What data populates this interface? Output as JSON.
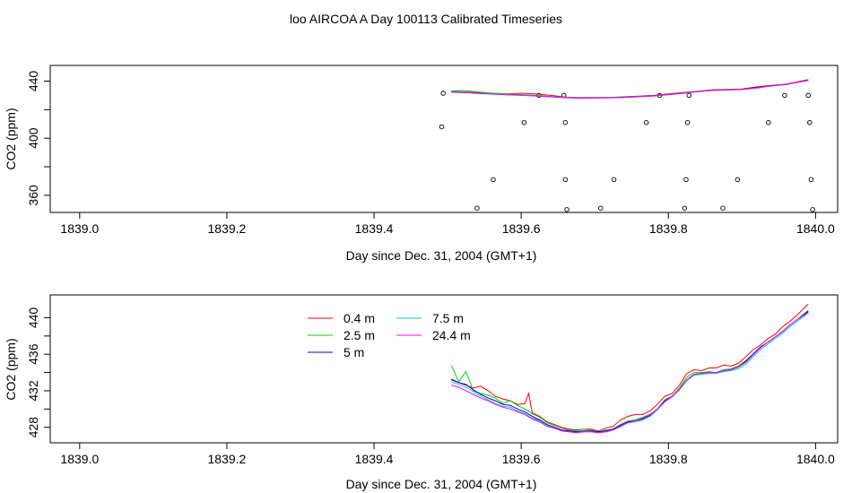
{
  "title": "loo AIRCOA A  Day 100113  Calibrated Timeseries",
  "colors": {
    "axis": "#000000",
    "background": "#ffffff"
  },
  "chart_data": [
    {
      "type": "line",
      "xlabel": "Day since Dec. 31, 2004 (GMT+1)",
      "ylabel": "CO2 (ppm)",
      "xlim": [
        1838.96,
        1840.03
      ],
      "ylim": [
        348,
        451
      ],
      "xticks": [
        "1839.0",
        "1839.2",
        "1839.4",
        "1839.6",
        "1839.8",
        "1840.0"
      ],
      "xtick_values": [
        1839.0,
        1839.2,
        1839.4,
        1839.6,
        1839.8,
        1840.0
      ],
      "yticks": [
        "360",
        "400",
        "440"
      ],
      "ytick_values": [
        360,
        380,
        400,
        420,
        440
      ],
      "scatter_points": [
        {
          "x": 1839.494,
          "y": 431.5
        },
        {
          "x": 1839.492,
          "y": 408
        },
        {
          "x": 1839.54,
          "y": 351
        },
        {
          "x": 1839.562,
          "y": 371
        },
        {
          "x": 1839.604,
          "y": 411
        },
        {
          "x": 1839.624,
          "y": 430
        },
        {
          "x": 1839.658,
          "y": 430
        },
        {
          "x": 1839.66,
          "y": 411
        },
        {
          "x": 1839.66,
          "y": 371
        },
        {
          "x": 1839.662,
          "y": 350
        },
        {
          "x": 1839.708,
          "y": 351
        },
        {
          "x": 1839.726,
          "y": 371
        },
        {
          "x": 1839.77,
          "y": 411
        },
        {
          "x": 1839.788,
          "y": 430
        },
        {
          "x": 1839.822,
          "y": 351
        },
        {
          "x": 1839.824,
          "y": 371
        },
        {
          "x": 1839.826,
          "y": 411
        },
        {
          "x": 1839.828,
          "y": 430
        },
        {
          "x": 1839.874,
          "y": 351
        },
        {
          "x": 1839.894,
          "y": 371
        },
        {
          "x": 1839.936,
          "y": 411
        },
        {
          "x": 1839.958,
          "y": 430
        },
        {
          "x": 1839.99,
          "y": 430
        },
        {
          "x": 1839.992,
          "y": 411
        },
        {
          "x": 1839.994,
          "y": 371
        },
        {
          "x": 1839.996,
          "y": 350
        }
      ],
      "series": [
        {
          "color": "#ff0000",
          "x": [
            1839.505,
            1839.52,
            1839.54,
            1839.56,
            1839.58,
            1839.6,
            1839.62,
            1839.64,
            1839.66,
            1839.68,
            1839.7,
            1839.72,
            1839.74,
            1839.76,
            1839.78,
            1839.8,
            1839.82,
            1839.84,
            1839.86,
            1839.88,
            1839.9,
            1839.92,
            1839.94,
            1839.96,
            1839.99
          ],
          "values": [
            433,
            432.5,
            432,
            431.5,
            431,
            431.5,
            431,
            430,
            428.8,
            428.5,
            428.5,
            428.5,
            429,
            429.5,
            430,
            431,
            432,
            433,
            434,
            434.2,
            434.5,
            436,
            437,
            438,
            441
          ]
        },
        {
          "color": "#00cc00",
          "x": [
            1839.505,
            1839.52,
            1839.54,
            1839.56,
            1839.58,
            1839.6,
            1839.62,
            1839.64,
            1839.66,
            1839.68,
            1839.7,
            1839.72,
            1839.74,
            1839.76,
            1839.78,
            1839.8,
            1839.82,
            1839.84,
            1839.86,
            1839.88,
            1839.9,
            1839.92,
            1839.94,
            1839.96,
            1839.99
          ],
          "values": [
            433,
            433.5,
            432.5,
            431.5,
            431,
            430.5,
            430,
            429.3,
            428.6,
            428.3,
            428.4,
            428.5,
            428.8,
            429.3,
            429.8,
            430.7,
            431.7,
            432.8,
            433.7,
            434,
            434.3,
            435.5,
            436.8,
            437.8,
            440.6
          ]
        },
        {
          "color": "#0000cc",
          "x": [
            1839.505,
            1839.52,
            1839.54,
            1839.56,
            1839.58,
            1839.6,
            1839.62,
            1839.64,
            1839.66,
            1839.68,
            1839.7,
            1839.72,
            1839.74,
            1839.76,
            1839.78,
            1839.8,
            1839.82,
            1839.84,
            1839.86,
            1839.88,
            1839.9,
            1839.92,
            1839.94,
            1839.96,
            1839.99
          ],
          "values": [
            432.6,
            432.3,
            431.6,
            431,
            430.5,
            430.2,
            429.8,
            429.1,
            428.5,
            428.2,
            428.3,
            428.4,
            428.7,
            429.2,
            429.7,
            430.6,
            431.6,
            432.7,
            433.6,
            433.9,
            434.2,
            435.4,
            436.7,
            437.7,
            440.7
          ]
        },
        {
          "color": "#00cccc",
          "x": [
            1839.505,
            1839.52,
            1839.54,
            1839.56,
            1839.58,
            1839.6,
            1839.62,
            1839.64,
            1839.66,
            1839.68,
            1839.7,
            1839.72,
            1839.74,
            1839.76,
            1839.78,
            1839.8,
            1839.82,
            1839.84,
            1839.86,
            1839.88,
            1839.9,
            1839.92,
            1839.94,
            1839.96,
            1839.99
          ],
          "values": [
            432.5,
            432.2,
            431.5,
            431,
            430.5,
            430.1,
            429.7,
            429,
            428.5,
            428.2,
            428.2,
            428.3,
            428.6,
            429.1,
            429.6,
            430.5,
            431.5,
            432.6,
            433.5,
            433.8,
            434.1,
            435.2,
            436.6,
            437.6,
            440.5
          ]
        },
        {
          "color": "#ff00ff",
          "x": [
            1839.505,
            1839.52,
            1839.54,
            1839.56,
            1839.58,
            1839.6,
            1839.62,
            1839.64,
            1839.66,
            1839.68,
            1839.7,
            1839.72,
            1839.74,
            1839.76,
            1839.78,
            1839.8,
            1839.82,
            1839.84,
            1839.86,
            1839.88,
            1839.9,
            1839.92,
            1839.94,
            1839.96,
            1839.99
          ],
          "values": [
            432.2,
            432,
            431.4,
            430.9,
            430.4,
            430,
            429.6,
            429,
            428.4,
            428.1,
            428.2,
            428.3,
            428.6,
            429.1,
            429.6,
            430.5,
            431.5,
            432.6,
            433.5,
            433.8,
            434.1,
            435.2,
            436.6,
            437.6,
            440.5
          ]
        }
      ]
    },
    {
      "type": "line",
      "xlabel": "Day since Dec. 31, 2004 (GMT+1)",
      "ylabel": "CO2 (ppm)",
      "xlim": [
        1838.96,
        1840.03
      ],
      "ylim": [
        426.3,
        442.5
      ],
      "xticks": [
        "1839.0",
        "1839.2",
        "1839.4",
        "1839.6",
        "1839.8",
        "1840.0"
      ],
      "xtick_values": [
        1839.0,
        1839.2,
        1839.4,
        1839.6,
        1839.8,
        1840.0
      ],
      "yticks": [
        "428",
        "432",
        "436",
        "440"
      ],
      "ytick_values": [
        428,
        430,
        432,
        434,
        436,
        438,
        440
      ],
      "legend": [
        {
          "label": "0.4 m",
          "color": "#ff0000"
        },
        {
          "label": "2.5 m",
          "color": "#00cc00"
        },
        {
          "label": "5 m",
          "color": "#0000cc"
        },
        {
          "label": "7.5 m",
          "color": "#00cccc"
        },
        {
          "label": "24.4 m",
          "color": "#ff00ff"
        }
      ],
      "series": [
        {
          "name": "0.4 m",
          "color": "#ff0000",
          "x": [
            1839.505,
            1839.515,
            1839.525,
            1839.535,
            1839.545,
            1839.555,
            1839.565,
            1839.575,
            1839.585,
            1839.595,
            1839.605,
            1839.61,
            1839.615,
            1839.625,
            1839.635,
            1839.645,
            1839.655,
            1839.665,
            1839.675,
            1839.685,
            1839.695,
            1839.705,
            1839.715,
            1839.725,
            1839.735,
            1839.745,
            1839.755,
            1839.765,
            1839.775,
            1839.785,
            1839.795,
            1839.805,
            1839.815,
            1839.825,
            1839.835,
            1839.845,
            1839.855,
            1839.865,
            1839.875,
            1839.885,
            1839.895,
            1839.905,
            1839.915,
            1839.925,
            1839.935,
            1839.945,
            1839.955,
            1839.965,
            1839.975,
            1839.99
          ],
          "values": [
            433.3,
            432.9,
            432.6,
            432.3,
            432.5,
            432.0,
            431.4,
            431.1,
            430.9,
            430.5,
            430.6,
            431.7,
            429.6,
            429.2,
            428.6,
            428.3,
            428.0,
            427.8,
            427.7,
            427.8,
            427.8,
            427.6,
            427.9,
            428.1,
            428.8,
            429.2,
            429.4,
            429.4,
            429.8,
            430.5,
            431.4,
            431.7,
            432.6,
            433.9,
            434.3,
            434.2,
            434.5,
            434.5,
            434.8,
            434.7,
            435.0,
            435.7,
            436.5,
            437.0,
            437.7,
            438.2,
            439.0,
            439.6,
            440.3,
            441.5
          ]
        },
        {
          "name": "2.5 m",
          "color": "#00cc00",
          "x": [
            1839.505,
            1839.515,
            1839.525,
            1839.535,
            1839.545,
            1839.555,
            1839.565,
            1839.575,
            1839.585,
            1839.595,
            1839.605,
            1839.615,
            1839.625,
            1839.635,
            1839.645,
            1839.655,
            1839.665,
            1839.675,
            1839.685,
            1839.695,
            1839.705,
            1839.715,
            1839.725,
            1839.735,
            1839.745,
            1839.755,
            1839.765,
            1839.775,
            1839.785,
            1839.795,
            1839.805,
            1839.815,
            1839.825,
            1839.835,
            1839.845,
            1839.855,
            1839.865,
            1839.875,
            1839.885,
            1839.895,
            1839.905,
            1839.915,
            1839.925,
            1839.935,
            1839.945,
            1839.955,
            1839.965,
            1839.975,
            1839.99
          ],
          "values": [
            434.8,
            433.0,
            434.1,
            432.0,
            431.7,
            431.5,
            431.2,
            430.6,
            430.9,
            430.4,
            430.0,
            429.5,
            429.1,
            428.5,
            428.2,
            427.9,
            427.7,
            427.6,
            427.8,
            427.7,
            427.5,
            427.7,
            427.8,
            428.3,
            428.7,
            428.8,
            429.1,
            429.4,
            430.0,
            431.0,
            431.4,
            432.3,
            433.5,
            434.0,
            434.0,
            434.1,
            434.0,
            434.3,
            434.4,
            434.7,
            435.3,
            436.0,
            436.8,
            437.3,
            437.9,
            438.5,
            439.2,
            439.8,
            440.8
          ]
        },
        {
          "name": "5 m",
          "color": "#0000cc",
          "x": [
            1839.505,
            1839.515,
            1839.525,
            1839.535,
            1839.545,
            1839.555,
            1839.565,
            1839.575,
            1839.585,
            1839.595,
            1839.605,
            1839.615,
            1839.625,
            1839.635,
            1839.645,
            1839.655,
            1839.665,
            1839.675,
            1839.685,
            1839.695,
            1839.705,
            1839.715,
            1839.725,
            1839.735,
            1839.745,
            1839.755,
            1839.765,
            1839.775,
            1839.785,
            1839.795,
            1839.805,
            1839.815,
            1839.825,
            1839.835,
            1839.845,
            1839.855,
            1839.865,
            1839.875,
            1839.885,
            1839.895,
            1839.905,
            1839.915,
            1839.925,
            1839.935,
            1839.945,
            1839.955,
            1839.965,
            1839.975,
            1839.99
          ],
          "values": [
            433.2,
            432.9,
            432.7,
            432.1,
            431.6,
            431.2,
            430.9,
            430.5,
            430.4,
            430.0,
            429.7,
            429.2,
            428.8,
            428.3,
            428.0,
            427.7,
            427.6,
            427.5,
            427.6,
            427.6,
            427.5,
            427.6,
            427.8,
            428.2,
            428.6,
            428.7,
            428.9,
            429.3,
            430.0,
            430.9,
            431.4,
            432.2,
            433.2,
            433.8,
            433.9,
            434.0,
            434.0,
            434.2,
            434.3,
            434.6,
            435.2,
            436.0,
            436.8,
            437.3,
            437.9,
            438.5,
            439.2,
            439.8,
            440.7
          ]
        },
        {
          "name": "7.5 m",
          "color": "#00cccc",
          "x": [
            1839.505,
            1839.515,
            1839.525,
            1839.535,
            1839.545,
            1839.555,
            1839.565,
            1839.575,
            1839.585,
            1839.595,
            1839.605,
            1839.615,
            1839.625,
            1839.635,
            1839.645,
            1839.655,
            1839.665,
            1839.675,
            1839.685,
            1839.695,
            1839.705,
            1839.715,
            1839.725,
            1839.735,
            1839.745,
            1839.755,
            1839.765,
            1839.775,
            1839.785,
            1839.795,
            1839.805,
            1839.815,
            1839.825,
            1839.835,
            1839.845,
            1839.855,
            1839.865,
            1839.875,
            1839.885,
            1839.895,
            1839.905,
            1839.915,
            1839.925,
            1839.935,
            1839.945,
            1839.955,
            1839.965,
            1839.975,
            1839.99
          ],
          "values": [
            433.0,
            432.7,
            432.4,
            431.9,
            431.4,
            431.0,
            430.6,
            430.3,
            430.2,
            429.8,
            429.5,
            429.0,
            428.7,
            428.2,
            427.9,
            427.6,
            427.5,
            427.4,
            427.5,
            427.5,
            427.4,
            427.5,
            427.7,
            428.1,
            428.5,
            428.6,
            428.8,
            429.2,
            429.9,
            430.8,
            431.3,
            432.1,
            433.1,
            433.7,
            433.8,
            433.9,
            433.9,
            434.1,
            434.2,
            434.4,
            434.9,
            435.7,
            436.5,
            437.1,
            437.7,
            438.3,
            439.0,
            439.6,
            440.5
          ]
        },
        {
          "name": "24.4 m",
          "color": "#ff00ff",
          "x": [
            1839.505,
            1839.515,
            1839.525,
            1839.535,
            1839.545,
            1839.555,
            1839.565,
            1839.575,
            1839.585,
            1839.595,
            1839.605,
            1839.615,
            1839.625,
            1839.635,
            1839.645,
            1839.655,
            1839.665,
            1839.675,
            1839.685,
            1839.695,
            1839.705,
            1839.715,
            1839.725,
            1839.735,
            1839.745,
            1839.755,
            1839.765,
            1839.775,
            1839.785,
            1839.795,
            1839.805,
            1839.815,
            1839.825,
            1839.835,
            1839.845,
            1839.855,
            1839.865,
            1839.875,
            1839.885,
            1839.895,
            1839.905,
            1839.915,
            1839.925,
            1839.935,
            1839.945,
            1839.955,
            1839.965,
            1839.975,
            1839.99
          ],
          "values": [
            432.6,
            432.4,
            432.0,
            431.6,
            431.2,
            430.9,
            430.5,
            430.2,
            430.0,
            429.7,
            429.4,
            428.9,
            428.6,
            428.1,
            427.9,
            427.6,
            427.5,
            427.4,
            427.5,
            427.5,
            427.4,
            427.5,
            427.7,
            428.1,
            428.5,
            428.7,
            429.0,
            429.4,
            430.0,
            430.8,
            431.4,
            432.2,
            433.2,
            433.8,
            433.9,
            434.0,
            434.0,
            434.2,
            434.3,
            434.6,
            435.1,
            435.9,
            436.7,
            437.3,
            437.9,
            438.5,
            439.2,
            439.8,
            440.6
          ]
        }
      ]
    }
  ]
}
